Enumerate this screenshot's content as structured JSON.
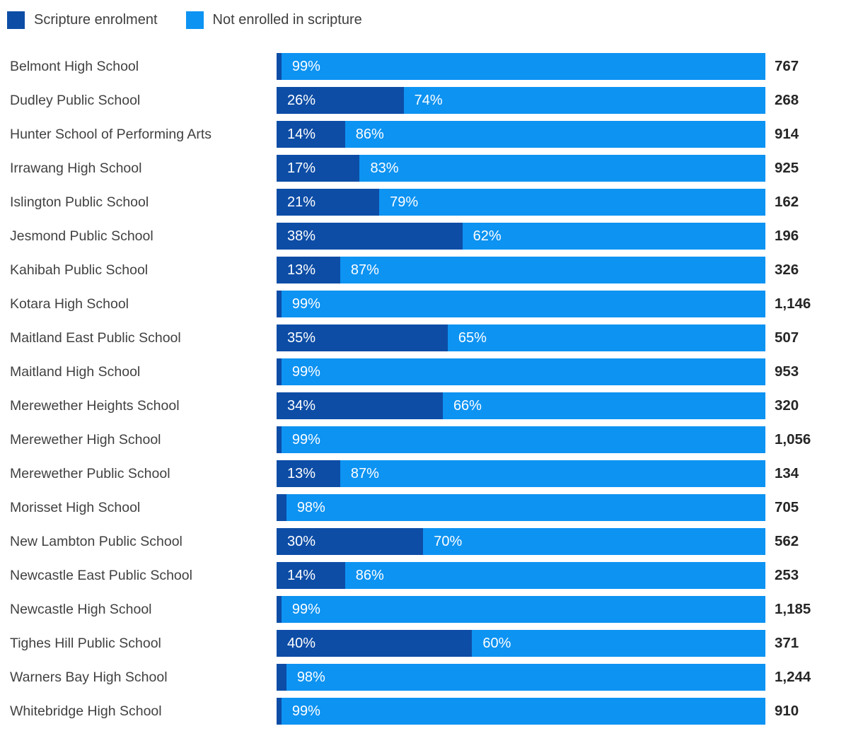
{
  "chart_data": {
    "type": "bar",
    "stacked": true,
    "orientation": "horizontal",
    "xlim": [
      0,
      100
    ],
    "unit": "%",
    "grid": false,
    "legend_position": "top",
    "legend": [
      {
        "label": "Scripture enrolment",
        "color": "#0d4da6"
      },
      {
        "label": "Not enrolled in scripture",
        "color": "#0d93f2"
      }
    ],
    "value_column_note": "right-hand bold number is total school enrolment",
    "rows": [
      {
        "school": "Belmont High School",
        "scripture_pct": 1,
        "not_enrolled_pct": 99,
        "scripture_label": "",
        "not_enrolled_label": "99%",
        "total": "767"
      },
      {
        "school": "Dudley Public School",
        "scripture_pct": 26,
        "not_enrolled_pct": 74,
        "scripture_label": "26%",
        "not_enrolled_label": "74%",
        "total": "268"
      },
      {
        "school": "Hunter School of Performing Arts",
        "scripture_pct": 14,
        "not_enrolled_pct": 86,
        "scripture_label": "14%",
        "not_enrolled_label": "86%",
        "total": "914"
      },
      {
        "school": "Irrawang High School",
        "scripture_pct": 17,
        "not_enrolled_pct": 83,
        "scripture_label": "17%",
        "not_enrolled_label": "83%",
        "total": "925"
      },
      {
        "school": "Islington Public School",
        "scripture_pct": 21,
        "not_enrolled_pct": 79,
        "scripture_label": "21%",
        "not_enrolled_label": "79%",
        "total": "162"
      },
      {
        "school": "Jesmond Public School",
        "scripture_pct": 38,
        "not_enrolled_pct": 62,
        "scripture_label": "38%",
        "not_enrolled_label": "62%",
        "total": "196"
      },
      {
        "school": "Kahibah Public School",
        "scripture_pct": 13,
        "not_enrolled_pct": 87,
        "scripture_label": "13%",
        "not_enrolled_label": "87%",
        "total": "326"
      },
      {
        "school": "Kotara High School",
        "scripture_pct": 1,
        "not_enrolled_pct": 99,
        "scripture_label": "",
        "not_enrolled_label": "99%",
        "total": "1,146"
      },
      {
        "school": "Maitland East Public School",
        "scripture_pct": 35,
        "not_enrolled_pct": 65,
        "scripture_label": "35%",
        "not_enrolled_label": "65%",
        "total": "507"
      },
      {
        "school": "Maitland High School",
        "scripture_pct": 1,
        "not_enrolled_pct": 99,
        "scripture_label": "",
        "not_enrolled_label": "99%",
        "total": "953"
      },
      {
        "school": "Merewether Heights School",
        "scripture_pct": 34,
        "not_enrolled_pct": 66,
        "scripture_label": "34%",
        "not_enrolled_label": "66%",
        "total": "320"
      },
      {
        "school": "Merewether High School",
        "scripture_pct": 1,
        "not_enrolled_pct": 99,
        "scripture_label": "",
        "not_enrolled_label": "99%",
        "total": "1,056"
      },
      {
        "school": "Merewether Public School",
        "scripture_pct": 13,
        "not_enrolled_pct": 87,
        "scripture_label": "13%",
        "not_enrolled_label": "87%",
        "total": "134"
      },
      {
        "school": "Morisset High School",
        "scripture_pct": 2,
        "not_enrolled_pct": 98,
        "scripture_label": "",
        "not_enrolled_label": "98%",
        "total": "705"
      },
      {
        "school": "New Lambton Public School",
        "scripture_pct": 30,
        "not_enrolled_pct": 70,
        "scripture_label": "30%",
        "not_enrolled_label": "70%",
        "total": "562"
      },
      {
        "school": "Newcastle East Public School",
        "scripture_pct": 14,
        "not_enrolled_pct": 86,
        "scripture_label": "14%",
        "not_enrolled_label": "86%",
        "total": "253"
      },
      {
        "school": "Newcastle High School",
        "scripture_pct": 1,
        "not_enrolled_pct": 99,
        "scripture_label": "",
        "not_enrolled_label": "99%",
        "total": "1,185"
      },
      {
        "school": "Tighes Hill Public School",
        "scripture_pct": 40,
        "not_enrolled_pct": 60,
        "scripture_label": "40%",
        "not_enrolled_label": "60%",
        "total": "371"
      },
      {
        "school": "Warners Bay High School",
        "scripture_pct": 2,
        "not_enrolled_pct": 98,
        "scripture_label": "",
        "not_enrolled_label": "98%",
        "total": "1,244"
      },
      {
        "school": "Whitebridge High School",
        "scripture_pct": 1,
        "not_enrolled_pct": 99,
        "scripture_label": "",
        "not_enrolled_label": "99%",
        "total": "910"
      }
    ]
  }
}
